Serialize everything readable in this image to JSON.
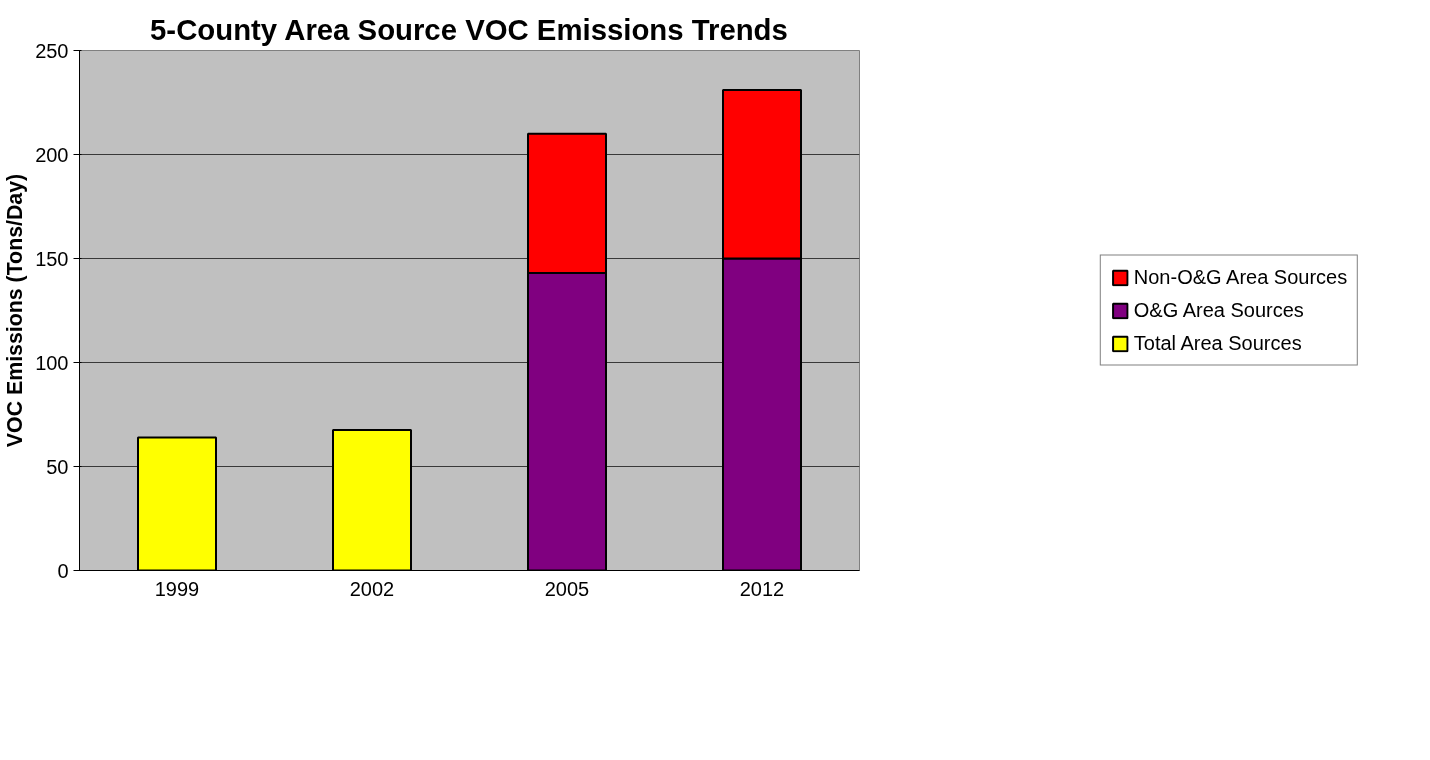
{
  "chart_data": {
    "type": "bar",
    "title": "5-County Area Source VOC Emissions Trends",
    "ylabel": "VOC Emissions (Tons/Day)",
    "categories": [
      "1999",
      "2002",
      "2005",
      "2012"
    ],
    "stacked": true,
    "series": [
      {
        "name": "Total Area Sources",
        "color": "#ffff00",
        "values": [
          64,
          67.5,
          null,
          null
        ]
      },
      {
        "name": "O&G Area Sources",
        "color": "#800080",
        "values": [
          null,
          null,
          143,
          150
        ]
      },
      {
        "name": "Non-O&G Area Sources",
        "color": "#ff0000",
        "values": [
          null,
          null,
          67,
          81
        ]
      }
    ],
    "ylim": [
      0,
      250
    ],
    "yticks": [
      0,
      50,
      100,
      150,
      200,
      250
    ],
    "grid": "y",
    "legend": "right"
  }
}
